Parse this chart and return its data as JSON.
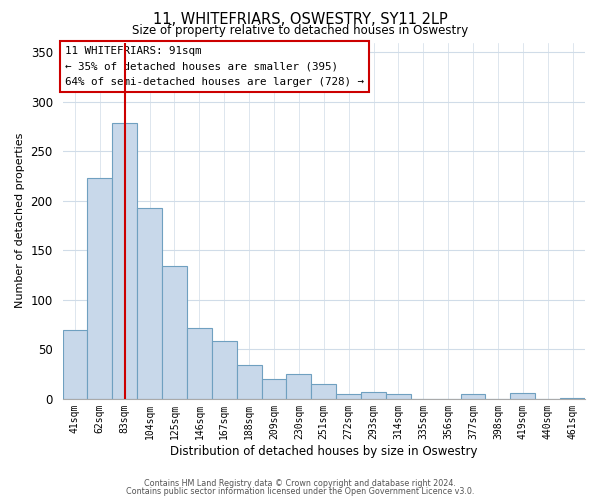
{
  "title": "11, WHITEFRIARS, OSWESTRY, SY11 2LP",
  "subtitle": "Size of property relative to detached houses in Oswestry",
  "xlabel": "Distribution of detached houses by size in Oswestry",
  "ylabel": "Number of detached properties",
  "bar_labels": [
    "41sqm",
    "62sqm",
    "83sqm",
    "104sqm",
    "125sqm",
    "146sqm",
    "167sqm",
    "188sqm",
    "209sqm",
    "230sqm",
    "251sqm",
    "272sqm",
    "293sqm",
    "314sqm",
    "335sqm",
    "356sqm",
    "377sqm",
    "398sqm",
    "419sqm",
    "440sqm",
    "461sqm"
  ],
  "bar_values": [
    70,
    223,
    279,
    193,
    134,
    72,
    58,
    34,
    20,
    25,
    15,
    5,
    7,
    5,
    0,
    0,
    5,
    0,
    6,
    0,
    1
  ],
  "bar_color": "#c8d8ea",
  "bar_edge_color": "#6fa0c0",
  "vline_x": 2,
  "vline_color": "#cc0000",
  "ylim": [
    0,
    360
  ],
  "yticks": [
    0,
    50,
    100,
    150,
    200,
    250,
    300,
    350
  ],
  "annotation_title": "11 WHITEFRIARS: 91sqm",
  "annotation_line1": "← 35% of detached houses are smaller (395)",
  "annotation_line2": "64% of semi-detached houses are larger (728) →",
  "footer_line1": "Contains HM Land Registry data © Crown copyright and database right 2024.",
  "footer_line2": "Contains public sector information licensed under the Open Government Licence v3.0.",
  "background_color": "#ffffff",
  "annotation_box_color": "#ffffff",
  "annotation_box_edge": "#cc0000",
  "grid_color": "#d0dce8"
}
